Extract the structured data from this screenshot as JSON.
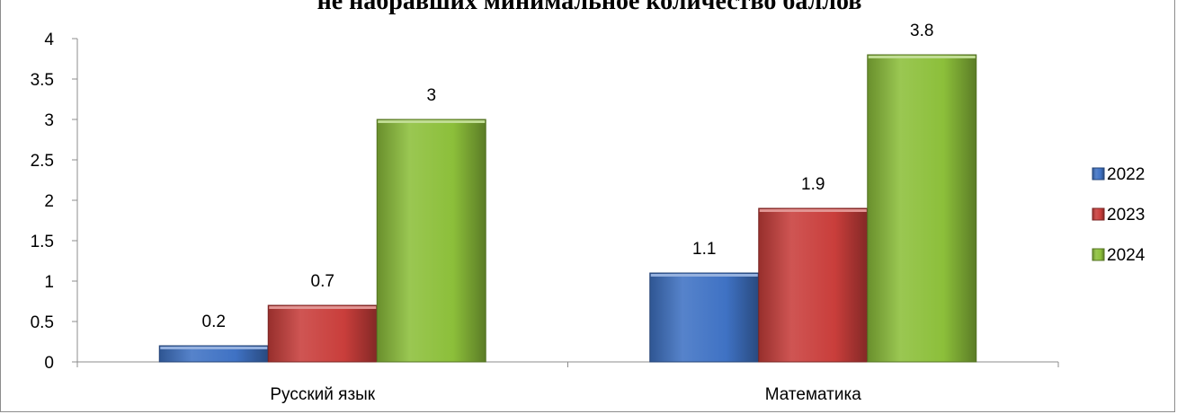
{
  "chart_data": {
    "type": "bar",
    "title": "не набравших минимальное количество баллов",
    "categories": [
      "Русский язык",
      "Математика"
    ],
    "series": [
      {
        "name": "2022",
        "values": [
          0.2,
          1.1
        ],
        "color": "#3f72c4"
      },
      {
        "name": "2023",
        "values": [
          0.7,
          1.9
        ],
        "color": "#c93e3b"
      },
      {
        "name": "2024",
        "values": [
          3,
          3.8
        ],
        "color": "#8cbf3a"
      }
    ],
    "data_labels": [
      [
        "0.2",
        "1.1"
      ],
      [
        "0.7",
        "1.9"
      ],
      [
        "3",
        "3.8"
      ]
    ],
    "y_ticks": [
      "0",
      "0.5",
      "1",
      "1.5",
      "2",
      "2.5",
      "3",
      "3.5",
      "4"
    ],
    "ylim": [
      0,
      4
    ],
    "grid": false,
    "legend_position": "right"
  }
}
